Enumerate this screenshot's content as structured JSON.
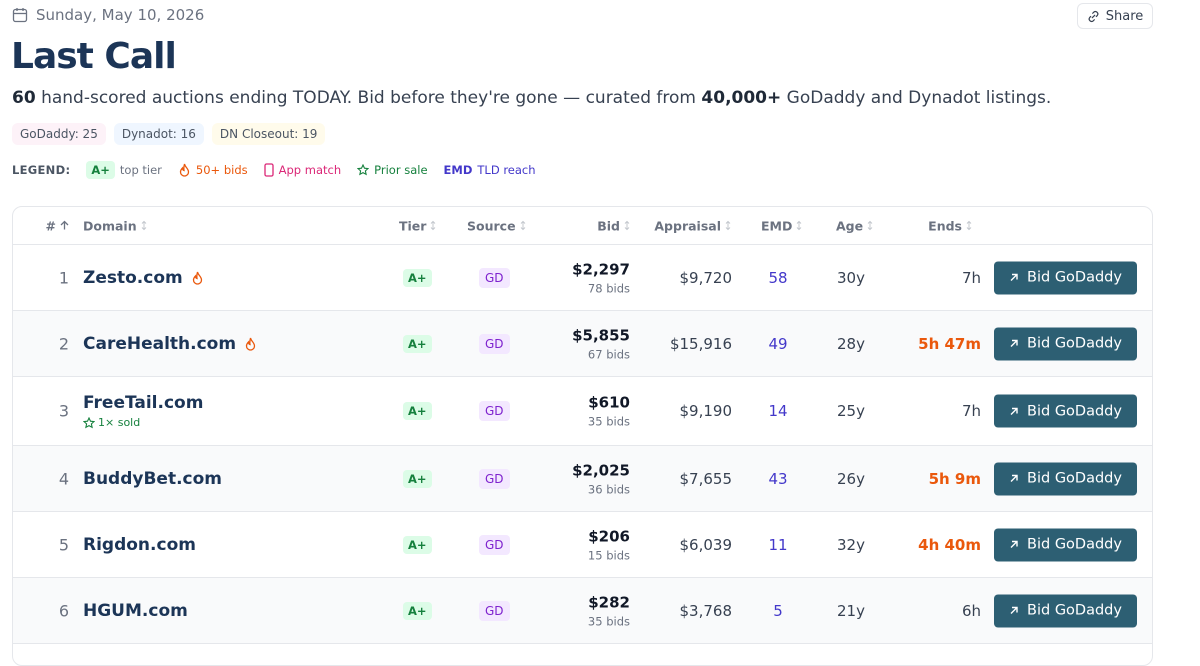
{
  "header": {
    "date": "Sunday, May 10, 2026",
    "share": "Share",
    "title": "Last Call",
    "subtitle": {
      "count": "60",
      "text1": "hand-scored auctions ending TODAY. Bid before they're gone — curated from",
      "total": "40,000+",
      "text2": "GoDaddy and Dynadot listings."
    }
  },
  "sources": [
    "GoDaddy: 25",
    "Dynadot: 16",
    "DN Closeout: 19"
  ],
  "legend": {
    "label": "LEGEND:",
    "items": [
      {
        "badge": "A+",
        "label": "top tier"
      },
      {
        "label": "50+ bids"
      },
      {
        "label": "App match"
      },
      {
        "label": "Prior sale"
      },
      {
        "badge": "EMD",
        "label": "TLD reach"
      }
    ]
  },
  "table": {
    "columns": [
      "#",
      "Domain",
      "Tier",
      "Source",
      "Bid",
      "Appraisal",
      "EMD",
      "Age",
      "Ends"
    ],
    "rows": [
      {
        "rank": "1",
        "domain": "Zesto.com",
        "hot": true,
        "tier": "A+",
        "source": "GD",
        "bid": "$2,297",
        "bids": "78 bids",
        "appraisal": "$9,720",
        "emd": "58",
        "age": "30y",
        "ends": "7h",
        "urgent": false,
        "action": "Bid GoDaddy"
      },
      {
        "rank": "2",
        "domain": "CareHealth.com",
        "hot": true,
        "tier": "A+",
        "source": "GD",
        "bid": "$5,855",
        "bids": "67 bids",
        "appraisal": "$15,916",
        "emd": "49",
        "age": "28y",
        "ends": "5h 47m",
        "urgent": true,
        "action": "Bid GoDaddy"
      },
      {
        "rank": "3",
        "domain": "FreeTail.com",
        "hot": false,
        "note": "1× sold",
        "tier": "A+",
        "source": "GD",
        "bid": "$610",
        "bids": "35 bids",
        "appraisal": "$9,190",
        "emd": "14",
        "age": "25y",
        "ends": "7h",
        "urgent": false,
        "action": "Bid GoDaddy"
      },
      {
        "rank": "4",
        "domain": "BuddyBet.com",
        "hot": false,
        "tier": "A+",
        "source": "GD",
        "bid": "$2,025",
        "bids": "36 bids",
        "appraisal": "$7,655",
        "emd": "43",
        "age": "26y",
        "ends": "5h 9m",
        "urgent": true,
        "action": "Bid GoDaddy"
      },
      {
        "rank": "5",
        "domain": "Rigdon.com",
        "hot": false,
        "tier": "A+",
        "source": "GD",
        "bid": "$206",
        "bids": "15 bids",
        "appraisal": "$6,039",
        "emd": "11",
        "age": "32y",
        "ends": "4h 40m",
        "urgent": true,
        "action": "Bid GoDaddy"
      },
      {
        "rank": "6",
        "domain": "HGUM.com",
        "hot": false,
        "tier": "A+",
        "source": "GD",
        "bid": "$282",
        "bids": "35 bids",
        "appraisal": "$3,768",
        "emd": "5",
        "age": "21y",
        "ends": "6h",
        "urgent": false,
        "action": "Bid GoDaddy"
      }
    ]
  }
}
